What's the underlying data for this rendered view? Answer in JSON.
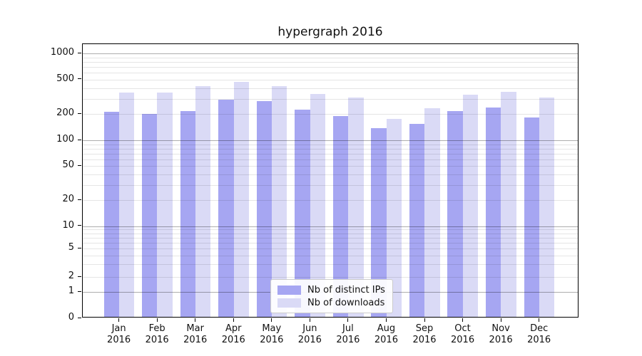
{
  "title": "hypergraph 2016",
  "chart_data": {
    "type": "bar",
    "title": "hypergraph 2016",
    "categories": [
      "Jan 2016",
      "Feb 2016",
      "Mar 2016",
      "Apr 2016",
      "May 2016",
      "Jun 2016",
      "Jul 2016",
      "Aug 2016",
      "Sep 2016",
      "Oct 2016",
      "Nov 2016",
      "Dec 2016"
    ],
    "series": [
      {
        "name": "Nb of distinct IPs",
        "color": "#a6a6f2",
        "values": [
          205,
          195,
          210,
          285,
          270,
          215,
          183,
          133,
          150,
          210,
          230,
          175
        ]
      },
      {
        "name": "Nb of downloads",
        "color": "#dadaf6",
        "values": [
          340,
          340,
          405,
          450,
          405,
          330,
          300,
          170,
          225,
          320,
          350,
          300
        ]
      }
    ],
    "yscale": "symlog",
    "ylim": [
      0,
      1278
    ],
    "y_ticks": [
      0,
      1,
      2,
      5,
      10,
      20,
      50,
      100,
      200,
      500,
      1000
    ],
    "xlabel": "",
    "ylabel": "",
    "grid": true,
    "legend_position": "lower center"
  },
  "colors": {
    "background": "#ffffff",
    "axis": "#000000",
    "text": "#111111",
    "major_grid": "#b0b0b0",
    "minor_grid": "#e4e4e4",
    "series_dark": "#a6a6f2",
    "series_light": "#dadaf6"
  }
}
